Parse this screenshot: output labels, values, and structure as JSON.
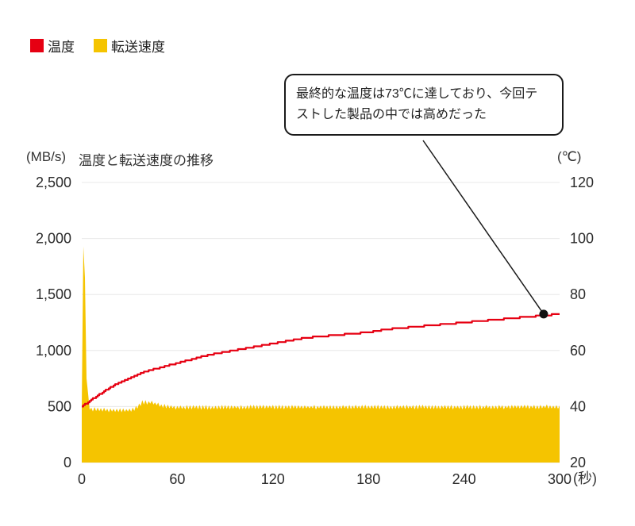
{
  "legend": {
    "items": [
      {
        "label": "温度",
        "color": "#e60012"
      },
      {
        "label": "転送速度",
        "color": "#f5c400"
      }
    ]
  },
  "callout": {
    "lines": [
      "最終的な温度は73℃に達しており、今回テ",
      "ストした製品の中では高めだった"
    ]
  },
  "chart_data": {
    "type": "area+line",
    "title": "温度と転送速度の推移",
    "y_left_unit": "(MB/s)",
    "y_right_unit": "(℃)",
    "x_unit": "(秒)",
    "x_range": [
      0,
      300
    ],
    "x_ticks": [
      0,
      60,
      120,
      180,
      240,
      300
    ],
    "y_left_range": [
      0,
      2500
    ],
    "y_left_ticks": [
      "0",
      "500",
      "1,000",
      "1,500",
      "2,000",
      "2,500"
    ],
    "y_right_range": [
      20,
      120
    ],
    "y_right_ticks": [
      "20",
      "40",
      "60",
      "80",
      "100",
      "120"
    ],
    "grid": true,
    "series": [
      {
        "name": "転送速度",
        "type": "area",
        "axis": "left",
        "color": "#f5c400",
        "samples": [
          [
            0,
            500
          ],
          [
            1,
            1930
          ],
          [
            2,
            1650
          ],
          [
            3,
            750
          ],
          [
            5,
            480
          ],
          [
            15,
            470
          ],
          [
            25,
            462
          ],
          [
            33,
            472
          ],
          [
            38,
            535
          ],
          [
            44,
            538
          ],
          [
            50,
            505
          ],
          [
            60,
            492
          ],
          [
            120,
            495
          ],
          [
            180,
            495
          ],
          [
            240,
            495
          ],
          [
            300,
            498
          ]
        ],
        "noise_amplitude": 22,
        "noise_start_t": 5
      },
      {
        "name": "温度",
        "type": "line",
        "axis": "right",
        "color": "#e60012",
        "x_step": 10,
        "values": [
          40,
          44,
          47.5,
          50,
          52.5,
          54,
          55.5,
          57,
          58.5,
          59.5,
          60.5,
          61.5,
          62.5,
          63.5,
          64.5,
          65,
          65.5,
          66,
          66.5,
          67.5,
          68,
          68.5,
          69,
          69.5,
          70,
          70.5,
          71,
          71.5,
          72,
          72.5,
          73
        ]
      }
    ],
    "annotation": {
      "t": 290,
      "value": 73,
      "axis": "right"
    }
  }
}
